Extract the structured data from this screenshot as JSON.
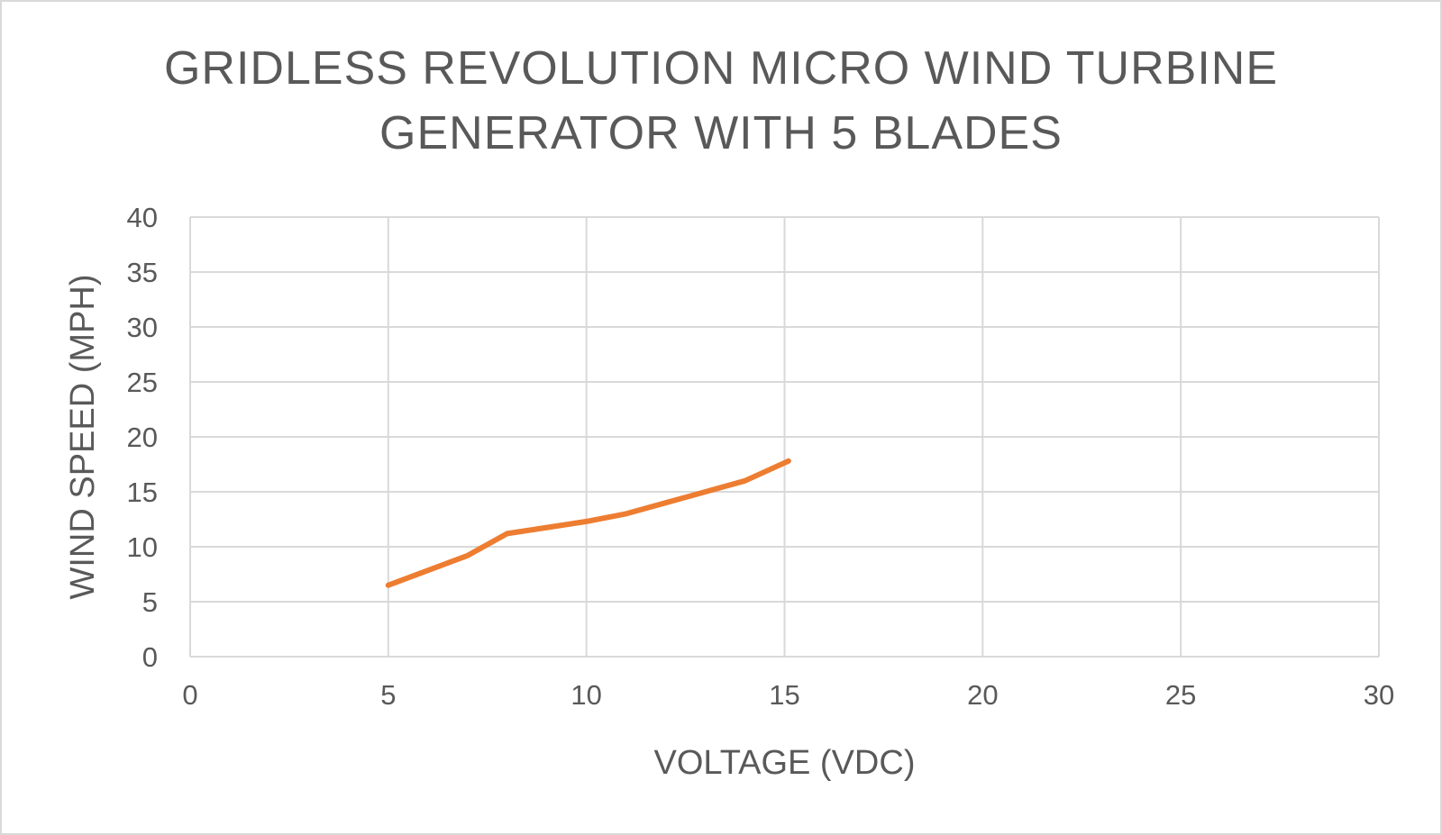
{
  "chart_data": {
    "type": "line",
    "title_lines": [
      "GRIDLESS REVOLUTION MICRO WIND TURBINE",
      "GENERATOR WITH 5 BLADES"
    ],
    "xlabel": "VOLTAGE (VDC)",
    "ylabel": "WIND SPEED (MPH)",
    "xlim": [
      0,
      30
    ],
    "ylim": [
      0,
      40
    ],
    "x_ticks": [
      "0",
      "5",
      "10",
      "15",
      "20",
      "25",
      "30"
    ],
    "y_ticks": [
      "0",
      "5",
      "10",
      "15",
      "20",
      "25",
      "30",
      "35",
      "40"
    ],
    "grid": true,
    "legend": "none",
    "series": [
      {
        "color": "#ed7d31",
        "x": [
          5,
          7,
          8,
          10,
          11,
          12,
          13,
          14,
          15.1
        ],
        "y": [
          6.5,
          9.2,
          11.2,
          12.3,
          13.0,
          14.0,
          15.0,
          16.0,
          17.8
        ]
      }
    ]
  }
}
